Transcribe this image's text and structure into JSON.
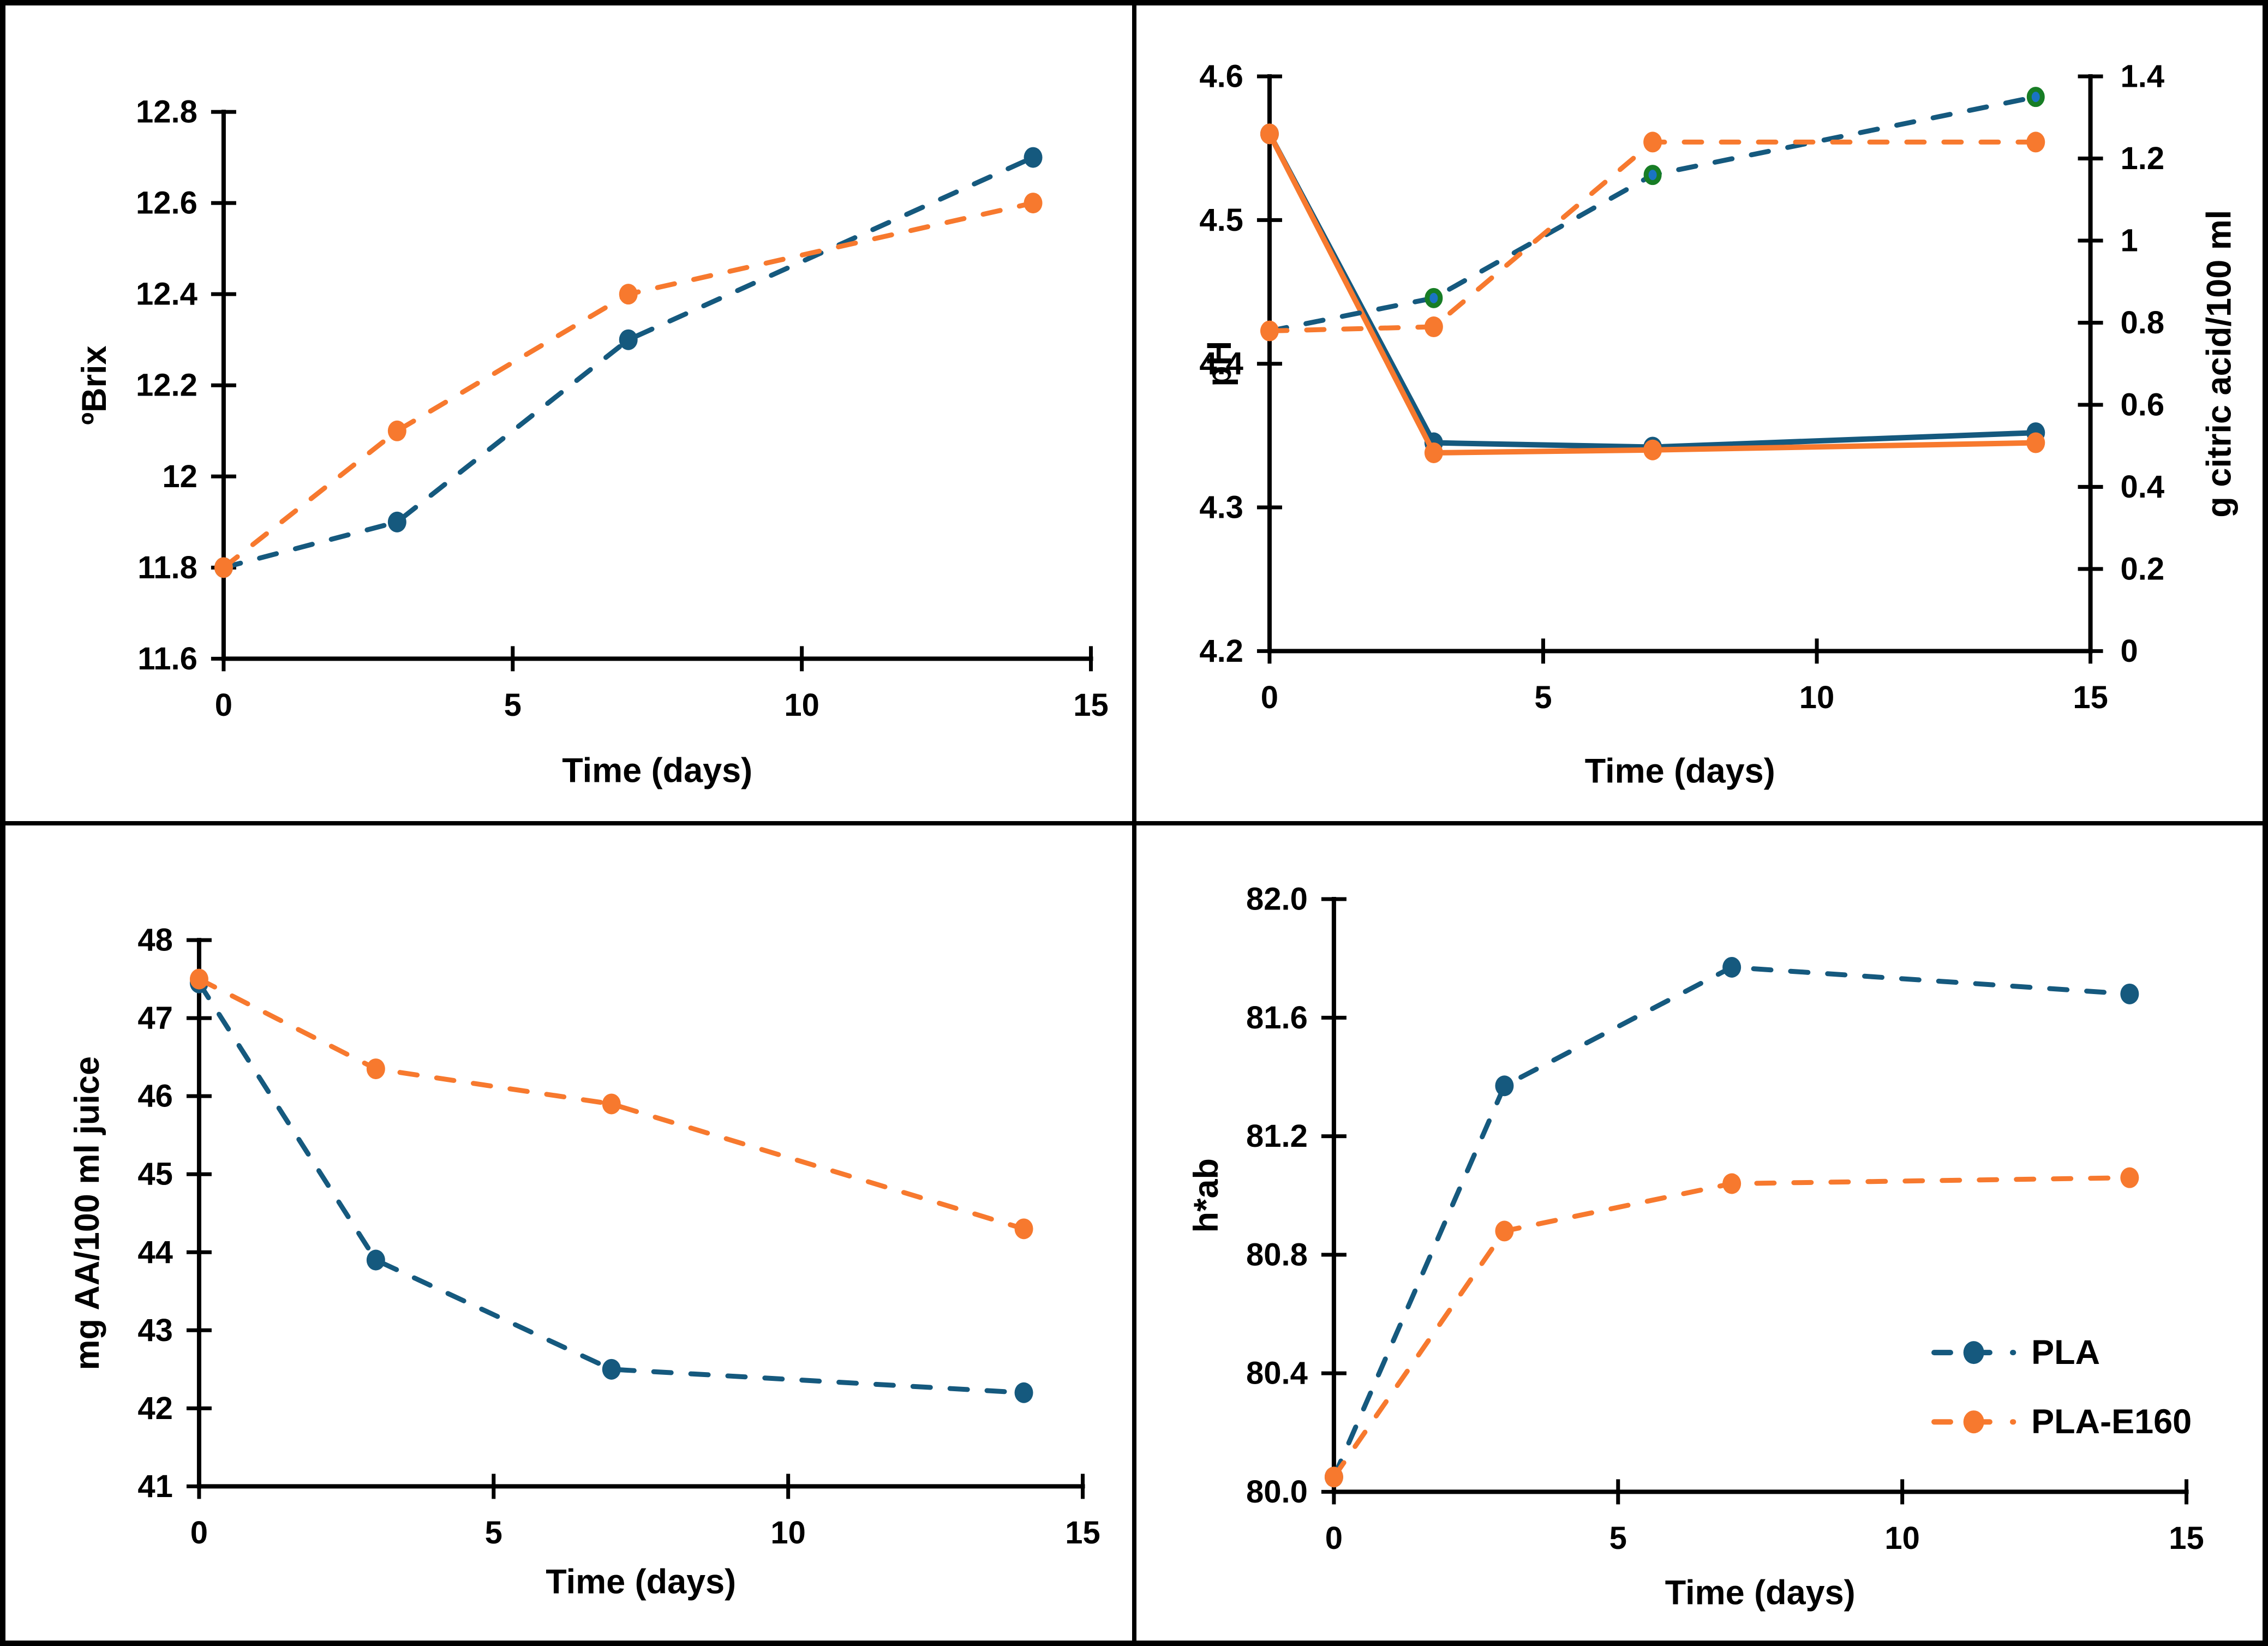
{
  "figure": {
    "background": "#ffffff",
    "border_color": "#000000",
    "divider_color": "#000000",
    "colors": {
      "pla": "#15597e",
      "pla_e160": "#f7792e",
      "citric_marker_fill": "#1a74c4",
      "citric_marker_ring": "#177d25",
      "axis": "#000000"
    }
  },
  "chart_data": [
    {
      "id": "brix",
      "type": "line",
      "xlabel": "Time (days)",
      "ylabel": "ºBrix",
      "x": [
        0,
        3,
        7,
        14
      ],
      "xlim": [
        0,
        15
      ],
      "xticks": [
        0,
        5,
        10,
        15
      ],
      "xtick_labels": [
        "0",
        "5",
        "10",
        "15"
      ],
      "ylim": [
        11.6,
        12.8
      ],
      "yticks": [
        11.6,
        11.8,
        12.0,
        12.2,
        12.4,
        12.6,
        12.8
      ],
      "ytick_labels": [
        "11.6",
        "11.8",
        "12",
        "12.2",
        "12.4",
        "12.6",
        "12.8"
      ],
      "grid": false,
      "series": [
        {
          "name": "PLA",
          "color": "#15597e",
          "dash": true,
          "values": [
            11.8,
            11.9,
            12.3,
            12.7
          ]
        },
        {
          "name": "PLA-E160",
          "color": "#f7792e",
          "dash": true,
          "values": [
            11.8,
            12.1,
            12.4,
            12.6
          ]
        }
      ]
    },
    {
      "id": "ph-citric",
      "type": "line",
      "xlabel": "Time (days)",
      "ylabel": "pH",
      "y2label": "g citric acid/100 ml",
      "x": [
        0,
        3,
        7,
        14
      ],
      "xlim": [
        0,
        15
      ],
      "xticks": [
        0,
        5,
        10,
        15
      ],
      "xtick_labels": [
        "0",
        "5",
        "10",
        "15"
      ],
      "ylim": [
        4.2,
        4.6
      ],
      "yticks": [
        4.2,
        4.3,
        4.4,
        4.5,
        4.6
      ],
      "ytick_labels": [
        "4.2",
        "4.3",
        "4.4",
        "4.5",
        "4.6"
      ],
      "y2lim": [
        0,
        1.4
      ],
      "y2ticks": [
        0,
        0.2,
        0.4,
        0.6,
        0.8,
        1.0,
        1.2,
        1.4
      ],
      "y2tick_labels": [
        "0",
        "0.2",
        "0.4",
        "0.6",
        "0.8",
        "1",
        "1.2",
        "1.4"
      ],
      "grid": false,
      "series": [
        {
          "name": "pH PLA",
          "color": "#15597e",
          "dash": false,
          "axis": "left",
          "values": [
            4.56,
            4.345,
            4.342,
            4.352
          ]
        },
        {
          "name": "pH PLA-E160",
          "color": "#f7792e",
          "dash": false,
          "axis": "left",
          "values": [
            4.56,
            4.338,
            4.34,
            4.345
          ]
        },
        {
          "name": "citric acid PLA",
          "color": "#15597e",
          "dash": true,
          "axis": "right",
          "marker_fill": "#1a74c4",
          "marker_ring": "#177d25",
          "values": [
            0.78,
            0.86,
            1.16,
            1.35
          ]
        },
        {
          "name": "citric acid PLA-E160",
          "color": "#f7792e",
          "dash": true,
          "axis": "right",
          "values": [
            0.78,
            0.79,
            1.24,
            1.24
          ]
        }
      ]
    },
    {
      "id": "ascorbic",
      "type": "line",
      "xlabel": "Time (days)",
      "ylabel": "mg AA/100 ml juice",
      "x": [
        0,
        3,
        7,
        14
      ],
      "xlim": [
        0,
        15
      ],
      "xticks": [
        0,
        5,
        10,
        15
      ],
      "xtick_labels": [
        "0",
        "5",
        "10",
        "15"
      ],
      "ylim": [
        41,
        48
      ],
      "yticks": [
        41,
        42,
        43,
        44,
        45,
        46,
        47,
        48
      ],
      "ytick_labels": [
        "41",
        "42",
        "43",
        "44",
        "45",
        "46",
        "47",
        "48"
      ],
      "grid": false,
      "series": [
        {
          "name": "PLA",
          "color": "#15597e",
          "dash": true,
          "values": [
            47.45,
            43.9,
            42.5,
            42.2
          ]
        },
        {
          "name": "PLA-E160",
          "color": "#f7792e",
          "dash": true,
          "values": [
            47.5,
            46.35,
            45.9,
            44.3
          ]
        }
      ]
    },
    {
      "id": "hue",
      "type": "line",
      "xlabel": "Time (days)",
      "ylabel": "h*ab",
      "x": [
        0,
        3,
        7,
        14
      ],
      "xlim": [
        0,
        15
      ],
      "xticks": [
        0,
        5,
        10,
        15
      ],
      "xtick_labels": [
        "0",
        "5",
        "10",
        "15"
      ],
      "ylim": [
        80.0,
        82.0
      ],
      "yticks": [
        80.0,
        80.4,
        80.8,
        81.2,
        81.6,
        82.0
      ],
      "ytick_labels": [
        "80.0",
        "80.4",
        "80.8",
        "81.2",
        "81.6",
        "82.0"
      ],
      "grid": false,
      "legend": {
        "position": "inside-right",
        "entries": [
          "PLA",
          "PLA-E160"
        ]
      },
      "series": [
        {
          "name": "PLA",
          "color": "#15597e",
          "dash": true,
          "values": [
            80.05,
            81.37,
            81.77,
            81.68
          ]
        },
        {
          "name": "PLA-E160",
          "color": "#f7792e",
          "dash": true,
          "values": [
            80.05,
            80.88,
            81.04,
            81.06
          ]
        }
      ]
    }
  ]
}
